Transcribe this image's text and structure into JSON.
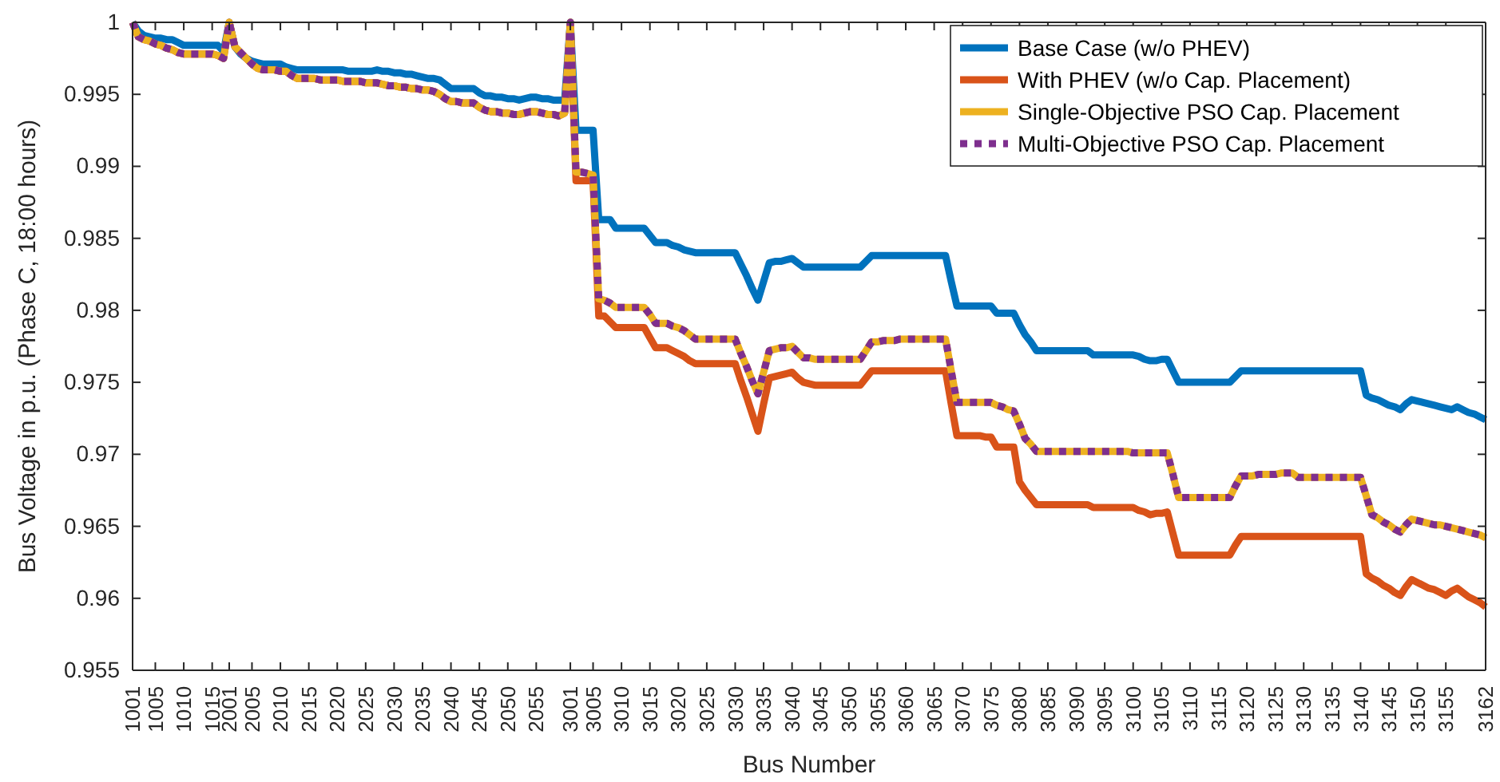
{
  "chart_data": {
    "type": "line",
    "xlabel": "Bus Number",
    "ylabel": "Bus Voltage in p.u. (Phase C, 18:00 hours)",
    "categories": [
      "1001",
      null,
      null,
      null,
      "1005",
      null,
      null,
      null,
      null,
      "1010",
      null,
      null,
      null,
      null,
      "1015",
      null,
      null,
      "2001",
      null,
      null,
      null,
      "2005",
      null,
      null,
      null,
      null,
      "2010",
      null,
      null,
      null,
      null,
      "2015",
      null,
      null,
      null,
      null,
      "2020",
      null,
      null,
      null,
      null,
      "2025",
      null,
      null,
      null,
      null,
      "2030",
      null,
      null,
      null,
      null,
      "2035",
      null,
      null,
      null,
      null,
      "2040",
      null,
      null,
      null,
      null,
      "2045",
      null,
      null,
      null,
      null,
      "2050",
      null,
      null,
      null,
      null,
      "2055",
      null,
      null,
      null,
      null,
      null,
      "3001",
      null,
      null,
      null,
      "3005",
      null,
      null,
      null,
      null,
      "3010",
      null,
      null,
      null,
      null,
      "3015",
      null,
      null,
      null,
      null,
      "3020",
      null,
      null,
      null,
      null,
      "3025",
      null,
      null,
      null,
      null,
      "3030",
      null,
      null,
      null,
      null,
      "3035",
      null,
      null,
      null,
      null,
      "3040",
      null,
      null,
      null,
      null,
      "3045",
      null,
      null,
      null,
      null,
      "3050",
      null,
      null,
      null,
      null,
      "3055",
      null,
      null,
      null,
      null,
      "3060",
      null,
      null,
      null,
      null,
      "3065",
      null,
      null,
      null,
      null,
      "3070",
      null,
      null,
      null,
      null,
      "3075",
      null,
      null,
      null,
      null,
      "3080",
      null,
      null,
      null,
      null,
      "3085",
      null,
      null,
      null,
      null,
      "3090",
      null,
      null,
      null,
      null,
      "3095",
      null,
      null,
      null,
      null,
      "3100",
      null,
      null,
      null,
      null,
      "3105",
      null,
      null,
      null,
      null,
      "3110",
      null,
      null,
      null,
      null,
      "3115",
      null,
      null,
      null,
      null,
      "3120",
      null,
      null,
      null,
      null,
      "3125",
      null,
      null,
      null,
      null,
      "3130",
      null,
      null,
      null,
      null,
      "3135",
      null,
      null,
      null,
      null,
      "3140",
      null,
      null,
      null,
      null,
      "3145",
      null,
      null,
      null,
      null,
      "3150",
      null,
      null,
      null,
      null,
      "3155",
      null,
      null,
      null,
      null,
      null,
      null,
      "3162"
    ],
    "ylim": [
      0.955,
      1
    ],
    "yticks": [
      0.955,
      0.96,
      0.965,
      0.97,
      0.975,
      0.98,
      0.985,
      0.99,
      0.995,
      1
    ],
    "grid": false,
    "legend": "top right",
    "series": [
      {
        "name": "Base Case (w/o PHEV)",
        "color": "#0072bd",
        "line_style": "solid",
        "values": [
          1.0,
          0.9994,
          0.9991,
          0.999,
          0.9989,
          0.9989,
          0.9988,
          0.9988,
          0.9986,
          0.9984,
          0.9984,
          0.9984,
          0.9984,
          0.9984,
          0.9984,
          0.9984,
          0.998,
          1.0,
          0.9983,
          0.9978,
          0.9975,
          0.9973,
          0.9972,
          0.9971,
          0.9971,
          0.9971,
          0.9971,
          0.9969,
          0.9968,
          0.9967,
          0.9967,
          0.9967,
          0.9967,
          0.9967,
          0.9967,
          0.9967,
          0.9967,
          0.9967,
          0.9966,
          0.9966,
          0.9966,
          0.9966,
          0.9966,
          0.9967,
          0.9966,
          0.9966,
          0.9965,
          0.9965,
          0.9964,
          0.9964,
          0.9963,
          0.9962,
          0.9961,
          0.9961,
          0.996,
          0.9957,
          0.9954,
          0.9954,
          0.9954,
          0.9954,
          0.9954,
          0.9951,
          0.9949,
          0.9949,
          0.9948,
          0.9948,
          0.9947,
          0.9947,
          0.9946,
          0.9947,
          0.9948,
          0.9948,
          0.9947,
          0.9947,
          0.9946,
          0.9946,
          0.9946,
          1.0,
          0.9925,
          0.9925,
          0.9925,
          0.9925,
          0.9863,
          0.9863,
          0.9863,
          0.9857,
          0.9857,
          0.9857,
          0.9857,
          0.9857,
          0.9857,
          0.9852,
          0.9847,
          0.9847,
          0.9847,
          0.9845,
          0.9844,
          0.9842,
          0.9841,
          0.984,
          0.984,
          0.984,
          0.984,
          0.984,
          0.984,
          0.984,
          0.984,
          0.9832,
          0.9824,
          0.9815,
          0.9807,
          0.982,
          0.9833,
          0.9834,
          0.9834,
          0.9835,
          0.9836,
          0.9833,
          0.983,
          0.983,
          0.983,
          0.983,
          0.983,
          0.983,
          0.983,
          0.983,
          0.983,
          0.983,
          0.983,
          0.9834,
          0.9838,
          0.9838,
          0.9838,
          0.9838,
          0.9838,
          0.9838,
          0.9838,
          0.9838,
          0.9838,
          0.9838,
          0.9838,
          0.9838,
          0.9838,
          0.9838,
          0.982,
          0.9803,
          0.9803,
          0.9803,
          0.9803,
          0.9803,
          0.9803,
          0.9803,
          0.9798,
          0.9798,
          0.9798,
          0.9798,
          0.979,
          0.9783,
          0.9778,
          0.9772,
          0.9772,
          0.9772,
          0.9772,
          0.9772,
          0.9772,
          0.9772,
          0.9772,
          0.9772,
          0.9772,
          0.9769,
          0.9769,
          0.9769,
          0.9769,
          0.9769,
          0.9769,
          0.9769,
          0.9769,
          0.9768,
          0.9766,
          0.9765,
          0.9765,
          0.9766,
          0.9766,
          0.9758,
          0.975,
          0.975,
          0.975,
          0.975,
          0.975,
          0.975,
          0.975,
          0.975,
          0.975,
          0.975,
          0.9754,
          0.9758,
          0.9758,
          0.9758,
          0.9758,
          0.9758,
          0.9758,
          0.9758,
          0.9758,
          0.9758,
          0.9758,
          0.9758,
          0.9758,
          0.9758,
          0.9758,
          0.9758,
          0.9758,
          0.9758,
          0.9758,
          0.9758,
          0.9758,
          0.9758,
          0.9758,
          0.9741,
          0.9739,
          0.9738,
          0.9736,
          0.9734,
          0.9733,
          0.9731,
          0.9735,
          0.9738,
          0.9737,
          0.9736,
          0.9735,
          0.9734,
          0.9733,
          0.9732,
          0.9731,
          0.9733,
          0.9731,
          0.9729,
          0.9728,
          0.9726,
          0.9724
        ]
      },
      {
        "name": "With PHEV (w/o Cap. Placement)",
        "color": "#d95319",
        "line_style": "solid",
        "values": [
          1.0,
          0.999,
          0.9988,
          0.9987,
          0.9985,
          0.9984,
          0.9982,
          0.9981,
          0.9979,
          0.9978,
          0.9978,
          0.9978,
          0.9978,
          0.9978,
          0.9978,
          0.9977,
          0.9975,
          1.0,
          0.9983,
          0.9979,
          0.9975,
          0.9971,
          0.9968,
          0.9967,
          0.9967,
          0.9967,
          0.9966,
          0.9966,
          0.9963,
          0.9961,
          0.9961,
          0.9961,
          0.9961,
          0.996,
          0.996,
          0.996,
          0.996,
          0.9959,
          0.9959,
          0.9959,
          0.9959,
          0.9958,
          0.9958,
          0.9958,
          0.9957,
          0.9956,
          0.9956,
          0.9955,
          0.9955,
          0.9954,
          0.9954,
          0.9953,
          0.9953,
          0.9952,
          0.995,
          0.9947,
          0.9945,
          0.9945,
          0.9944,
          0.9944,
          0.9944,
          0.9941,
          0.9939,
          0.9938,
          0.9938,
          0.9937,
          0.9937,
          0.9936,
          0.9936,
          0.9937,
          0.9938,
          0.9938,
          0.9937,
          0.9936,
          0.9936,
          0.9935,
          0.9937,
          1.0,
          0.989,
          0.989,
          0.989,
          0.989,
          0.9796,
          0.9796,
          0.9792,
          0.9788,
          0.9788,
          0.9788,
          0.9788,
          0.9788,
          0.9788,
          0.9781,
          0.9774,
          0.9774,
          0.9774,
          0.9772,
          0.977,
          0.9768,
          0.9765,
          0.9763,
          0.9763,
          0.9763,
          0.9763,
          0.9763,
          0.9763,
          0.9763,
          0.9763,
          0.9751,
          0.974,
          0.9728,
          0.9716,
          0.9735,
          0.9753,
          0.9754,
          0.9755,
          0.9756,
          0.9757,
          0.9753,
          0.975,
          0.9749,
          0.9748,
          0.9748,
          0.9748,
          0.9748,
          0.9748,
          0.9748,
          0.9748,
          0.9748,
          0.9748,
          0.9753,
          0.9758,
          0.9758,
          0.9758,
          0.9758,
          0.9758,
          0.9758,
          0.9758,
          0.9758,
          0.9758,
          0.9758,
          0.9758,
          0.9758,
          0.9758,
          0.9758,
          0.9735,
          0.9713,
          0.9713,
          0.9713,
          0.9713,
          0.9713,
          0.9712,
          0.9712,
          0.9705,
          0.9705,
          0.9705,
          0.9705,
          0.9681,
          0.9675,
          0.967,
          0.9665,
          0.9665,
          0.9665,
          0.9665,
          0.9665,
          0.9665,
          0.9665,
          0.9665,
          0.9665,
          0.9665,
          0.9663,
          0.9663,
          0.9663,
          0.9663,
          0.9663,
          0.9663,
          0.9663,
          0.9663,
          0.9661,
          0.966,
          0.9658,
          0.9659,
          0.9659,
          0.966,
          0.9645,
          0.963,
          0.963,
          0.963,
          0.963,
          0.963,
          0.963,
          0.963,
          0.963,
          0.963,
          0.963,
          0.9637,
          0.9643,
          0.9643,
          0.9643,
          0.9643,
          0.9643,
          0.9643,
          0.9643,
          0.9643,
          0.9643,
          0.9643,
          0.9643,
          0.9643,
          0.9643,
          0.9643,
          0.9643,
          0.9643,
          0.9643,
          0.9643,
          0.9643,
          0.9643,
          0.9643,
          0.9643,
          0.9617,
          0.9614,
          0.9612,
          0.9609,
          0.9607,
          0.9604,
          0.9602,
          0.9608,
          0.9613,
          0.9611,
          0.9609,
          0.9607,
          0.9606,
          0.9604,
          0.9602,
          0.9605,
          0.9607,
          0.9604,
          0.9601,
          0.9599,
          0.9597,
          0.9594
        ]
      },
      {
        "name": "Single-Objective PSO Cap. Placement",
        "color": "#edb120",
        "line_style": "solid",
        "values": [
          1.0,
          0.999,
          0.9988,
          0.9987,
          0.9985,
          0.9984,
          0.9982,
          0.9981,
          0.9979,
          0.9978,
          0.9978,
          0.9978,
          0.9978,
          0.9978,
          0.9978,
          0.9977,
          0.9975,
          1.0,
          0.9983,
          0.9979,
          0.9975,
          0.9971,
          0.9968,
          0.9967,
          0.9967,
          0.9967,
          0.9966,
          0.9966,
          0.9963,
          0.9961,
          0.9961,
          0.9961,
          0.9961,
          0.996,
          0.996,
          0.996,
          0.996,
          0.9959,
          0.9959,
          0.9959,
          0.9959,
          0.9958,
          0.9958,
          0.9958,
          0.9957,
          0.9956,
          0.9956,
          0.9955,
          0.9955,
          0.9954,
          0.9954,
          0.9953,
          0.9953,
          0.9952,
          0.995,
          0.9947,
          0.9945,
          0.9945,
          0.9944,
          0.9944,
          0.9944,
          0.9941,
          0.9939,
          0.9938,
          0.9938,
          0.9937,
          0.9937,
          0.9936,
          0.9936,
          0.9937,
          0.9938,
          0.9938,
          0.9937,
          0.9936,
          0.9936,
          0.9935,
          0.9937,
          1.0,
          0.9896,
          0.9896,
          0.9895,
          0.9894,
          0.9808,
          0.9807,
          0.9805,
          0.9802,
          0.9802,
          0.9802,
          0.9802,
          0.9802,
          0.9802,
          0.9797,
          0.9791,
          0.9791,
          0.9791,
          0.9789,
          0.9788,
          0.9786,
          0.9783,
          0.978,
          0.978,
          0.978,
          0.978,
          0.978,
          0.978,
          0.978,
          0.978,
          0.977,
          0.9761,
          0.9751,
          0.9742,
          0.9757,
          0.9772,
          0.9773,
          0.9774,
          0.9774,
          0.9775,
          0.9771,
          0.9767,
          0.9767,
          0.9766,
          0.9766,
          0.9766,
          0.9766,
          0.9766,
          0.9766,
          0.9766,
          0.9766,
          0.9766,
          0.9772,
          0.9778,
          0.9778,
          0.9779,
          0.9779,
          0.9779,
          0.978,
          0.978,
          0.978,
          0.978,
          0.978,
          0.978,
          0.978,
          0.978,
          0.978,
          0.9758,
          0.9736,
          0.9736,
          0.9736,
          0.9736,
          0.9736,
          0.9736,
          0.9736,
          0.9734,
          0.9733,
          0.9731,
          0.973,
          0.9721,
          0.9711,
          0.9707,
          0.9702,
          0.9702,
          0.9702,
          0.9702,
          0.9702,
          0.9702,
          0.9702,
          0.9702,
          0.9702,
          0.9702,
          0.9702,
          0.9702,
          0.9702,
          0.9702,
          0.9702,
          0.9702,
          0.9702,
          0.9701,
          0.9701,
          0.9701,
          0.9701,
          0.9701,
          0.9701,
          0.9701,
          0.9686,
          0.967,
          0.967,
          0.967,
          0.967,
          0.967,
          0.967,
          0.967,
          0.967,
          0.967,
          0.967,
          0.9678,
          0.9685,
          0.9685,
          0.9685,
          0.9686,
          0.9686,
          0.9686,
          0.9686,
          0.9687,
          0.9687,
          0.9687,
          0.9684,
          0.9684,
          0.9684,
          0.9684,
          0.9684,
          0.9684,
          0.9684,
          0.9684,
          0.9684,
          0.9684,
          0.9684,
          0.9684,
          0.9671,
          0.9658,
          0.9656,
          0.9653,
          0.9651,
          0.9648,
          0.9646,
          0.9651,
          0.9655,
          0.9654,
          0.9653,
          0.9652,
          0.9651,
          0.9651,
          0.965,
          0.9649,
          0.9648,
          0.9647,
          0.9646,
          0.9645,
          0.9644,
          0.9642
        ]
      },
      {
        "name": "Multi-Objective PSO Cap. Placement",
        "color": "#7e2f8e",
        "line_style": "dotted",
        "values": [
          1.0,
          0.999,
          0.9988,
          0.9987,
          0.9985,
          0.9984,
          0.9982,
          0.9981,
          0.9979,
          0.9978,
          0.9978,
          0.9978,
          0.9978,
          0.9978,
          0.9978,
          0.9977,
          0.9975,
          1.0,
          0.9983,
          0.9979,
          0.9975,
          0.9971,
          0.9968,
          0.9967,
          0.9967,
          0.9967,
          0.9966,
          0.9966,
          0.9963,
          0.9961,
          0.9961,
          0.9961,
          0.9961,
          0.996,
          0.996,
          0.996,
          0.996,
          0.9959,
          0.9959,
          0.9959,
          0.9959,
          0.9958,
          0.9958,
          0.9958,
          0.9957,
          0.9956,
          0.9956,
          0.9955,
          0.9955,
          0.9954,
          0.9954,
          0.9953,
          0.9953,
          0.9952,
          0.995,
          0.9947,
          0.9945,
          0.9945,
          0.9944,
          0.9944,
          0.9944,
          0.9941,
          0.9939,
          0.9938,
          0.9938,
          0.9937,
          0.9937,
          0.9936,
          0.9936,
          0.9937,
          0.9938,
          0.9938,
          0.9937,
          0.9936,
          0.9936,
          0.9935,
          0.9937,
          1.0,
          0.9896,
          0.9896,
          0.9895,
          0.9894,
          0.9808,
          0.9807,
          0.9805,
          0.9802,
          0.9802,
          0.9802,
          0.9802,
          0.9802,
          0.9802,
          0.9797,
          0.9791,
          0.9791,
          0.9791,
          0.9789,
          0.9788,
          0.9786,
          0.9783,
          0.978,
          0.978,
          0.978,
          0.978,
          0.978,
          0.978,
          0.978,
          0.978,
          0.977,
          0.9761,
          0.9751,
          0.9742,
          0.9757,
          0.9772,
          0.9773,
          0.9774,
          0.9774,
          0.9775,
          0.9771,
          0.9767,
          0.9767,
          0.9766,
          0.9766,
          0.9766,
          0.9766,
          0.9766,
          0.9766,
          0.9766,
          0.9766,
          0.9766,
          0.9772,
          0.9778,
          0.9778,
          0.9779,
          0.9779,
          0.9779,
          0.978,
          0.978,
          0.978,
          0.978,
          0.978,
          0.978,
          0.978,
          0.978,
          0.978,
          0.9758,
          0.9736,
          0.9736,
          0.9736,
          0.9736,
          0.9736,
          0.9736,
          0.9736,
          0.9734,
          0.9733,
          0.9731,
          0.973,
          0.9721,
          0.9711,
          0.9707,
          0.9702,
          0.9702,
          0.9702,
          0.9702,
          0.9702,
          0.9702,
          0.9702,
          0.9702,
          0.9702,
          0.9702,
          0.9702,
          0.9702,
          0.9702,
          0.9702,
          0.9702,
          0.9702,
          0.9702,
          0.9701,
          0.9701,
          0.9701,
          0.9701,
          0.9701,
          0.9701,
          0.9701,
          0.9686,
          0.967,
          0.967,
          0.967,
          0.967,
          0.967,
          0.967,
          0.967,
          0.967,
          0.967,
          0.967,
          0.9678,
          0.9685,
          0.9685,
          0.9685,
          0.9686,
          0.9686,
          0.9686,
          0.9686,
          0.9687,
          0.9687,
          0.9687,
          0.9684,
          0.9684,
          0.9684,
          0.9684,
          0.9684,
          0.9684,
          0.9684,
          0.9684,
          0.9684,
          0.9684,
          0.9684,
          0.9684,
          0.9671,
          0.9658,
          0.9656,
          0.9653,
          0.9651,
          0.9648,
          0.9646,
          0.9651,
          0.9655,
          0.9654,
          0.9653,
          0.9652,
          0.9651,
          0.9651,
          0.965,
          0.9649,
          0.9648,
          0.9647,
          0.9646,
          0.9645,
          0.9644,
          0.9642
        ]
      }
    ]
  }
}
